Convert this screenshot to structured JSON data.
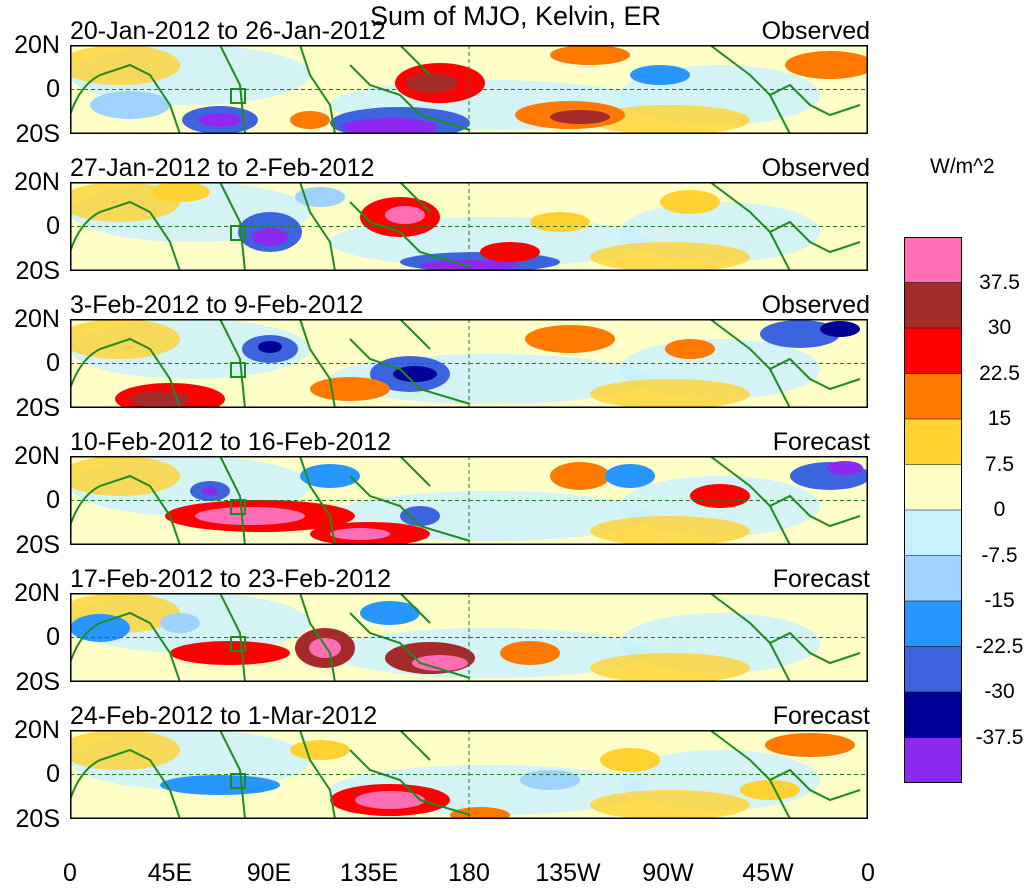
{
  "title": "Sum of MJO, Kelvin, ER",
  "panels": [
    {
      "range": "20-Jan-2012 to 26-Jan-2012",
      "kind": "Observed"
    },
    {
      "range": "27-Jan-2012 to 2-Feb-2012",
      "kind": "Observed"
    },
    {
      "range": "3-Feb-2012 to 9-Feb-2012",
      "kind": "Observed"
    },
    {
      "range": "10-Feb-2012 to 16-Feb-2012",
      "kind": "Forecast"
    },
    {
      "range": "17-Feb-2012 to 23-Feb-2012",
      "kind": "Forecast"
    },
    {
      "range": "24-Feb-2012 to 1-Mar-2012",
      "kind": "Forecast"
    }
  ],
  "lat_labels": [
    "20N",
    "0",
    "20S"
  ],
  "lon_labels": [
    "0",
    "45E",
    "90E",
    "135E",
    "180",
    "135W",
    "90W",
    "45W",
    "0"
  ],
  "colorbar": {
    "unit": "W/m^2",
    "labels": [
      "37.5",
      "30",
      "22.5",
      "15",
      "7.5",
      "0",
      "-7.5",
      "-15",
      "-22.5",
      "-30",
      "-37.5"
    ],
    "colors": [
      "#ff6eb4",
      "#a52a2a",
      "#ff0000",
      "#ff7800",
      "#ffd232",
      "#ffffc8",
      "#c8f0ff",
      "#a0d2ff",
      "#2896ff",
      "#3c64dc",
      "#000096",
      "#8c28f0"
    ]
  },
  "map_colors": {
    "land": "#1e8c1e",
    "guide": "#1e7a1e"
  }
}
